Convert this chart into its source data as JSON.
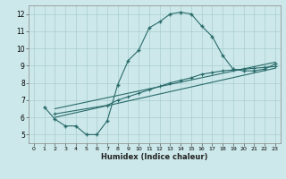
{
  "xlabel": "Humidex (Indice chaleur)",
  "background_color": "#cce8ea",
  "grid_color": "#aacdd0",
  "line_color": "#2a6b6b",
  "xlim": [
    -0.5,
    23.5
  ],
  "ylim": [
    4.5,
    12.5
  ],
  "xticks": [
    0,
    1,
    2,
    3,
    4,
    5,
    6,
    7,
    8,
    9,
    10,
    11,
    12,
    13,
    14,
    15,
    16,
    17,
    18,
    19,
    20,
    21,
    22,
    23
  ],
  "yticks": [
    5,
    6,
    7,
    8,
    9,
    10,
    11,
    12
  ],
  "curve1_x": [
    1,
    2,
    3,
    4,
    5,
    6,
    7,
    8,
    9,
    10,
    11,
    12,
    13,
    14,
    15,
    16,
    17,
    18,
    19,
    20,
    21,
    22,
    23
  ],
  "curve1_y": [
    6.6,
    5.9,
    5.5,
    5.5,
    5.0,
    5.0,
    5.8,
    7.9,
    9.3,
    9.9,
    11.2,
    11.55,
    12.0,
    12.1,
    12.0,
    11.3,
    10.7,
    9.6,
    8.8,
    8.7,
    8.7,
    8.8,
    9.1
  ],
  "curve2_x": [
    2,
    23
  ],
  "curve2_y": [
    6.5,
    9.2
  ],
  "curve3_x": [
    2,
    7,
    8,
    9,
    10,
    11,
    12,
    13,
    14,
    15,
    16,
    17,
    18,
    19,
    20,
    21,
    22,
    23
  ],
  "curve3_y": [
    6.2,
    6.7,
    7.0,
    7.2,
    7.4,
    7.6,
    7.8,
    8.0,
    8.15,
    8.3,
    8.5,
    8.6,
    8.7,
    8.75,
    8.8,
    8.85,
    8.9,
    8.95
  ],
  "curve4_x": [
    2,
    23
  ],
  "curve4_y": [
    6.0,
    8.85
  ]
}
